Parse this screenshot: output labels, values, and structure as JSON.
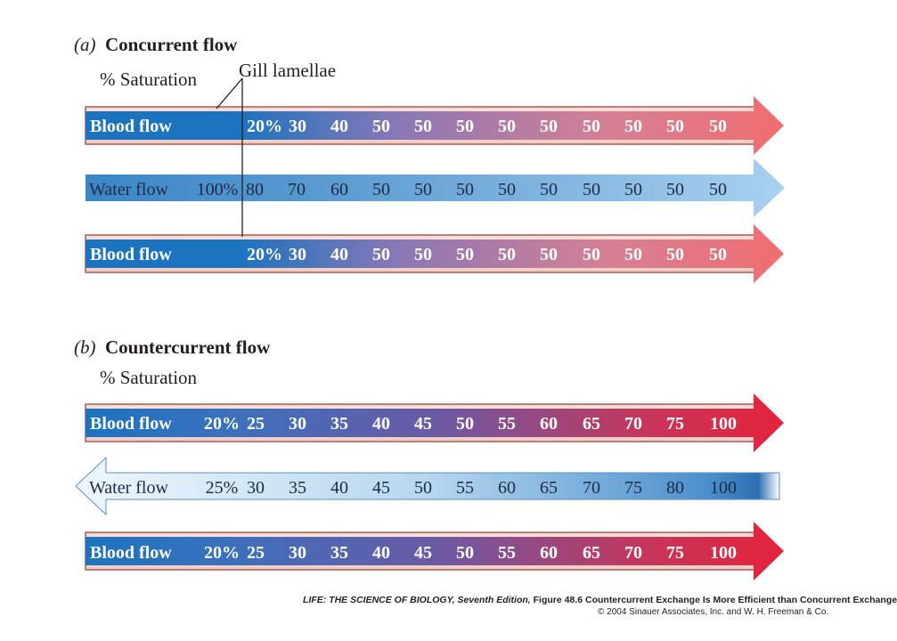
{
  "panel_a": {
    "letter": "(a)",
    "title": "Concurrent flow",
    "saturation_label": "% Saturation",
    "gill_label": "Gill lamellae",
    "blood_top": {
      "label": "Blood flow",
      "values": [
        "20%",
        "30",
        "40",
        "50",
        "50",
        "50",
        "50",
        "50",
        "50",
        "50",
        "50",
        "50"
      ]
    },
    "water": {
      "label": "Water flow",
      "values": [
        "100%",
        "80",
        "70",
        "60",
        "50",
        "50",
        "50",
        "50",
        "50",
        "50",
        "50",
        "50",
        "50"
      ]
    },
    "blood_bottom": {
      "label": "Blood flow",
      "values": [
        "20%",
        "30",
        "40",
        "50",
        "50",
        "50",
        "50",
        "50",
        "50",
        "50",
        "50",
        "50"
      ]
    }
  },
  "panel_b": {
    "letter": "(b)",
    "title": "Countercurrent flow",
    "saturation_label": "% Saturation",
    "blood_top": {
      "label": "Blood flow",
      "values": [
        "20%",
        "25",
        "30",
        "35",
        "40",
        "45",
        "50",
        "55",
        "60",
        "65",
        "70",
        "75",
        "100"
      ]
    },
    "water": {
      "label": "Water flow",
      "values": [
        "25%",
        "30",
        "35",
        "40",
        "45",
        "50",
        "55",
        "60",
        "65",
        "70",
        "75",
        "80",
        "100"
      ]
    },
    "blood_bottom": {
      "label": "Blood flow",
      "values": [
        "20%",
        "25",
        "30",
        "35",
        "40",
        "45",
        "50",
        "55",
        "60",
        "65",
        "70",
        "75",
        "100"
      ]
    }
  },
  "credit": {
    "line1_italic": "LIFE: THE SCIENCE OF BIOLOGY, Seventh Edition,",
    "line1_rest": " Figure 48.6 Countercurrent Exchange Is More Efficient than Concurrent Exchange",
    "line2": "© 2004 Sinauer Associates, Inc. and W. H. Freeman & Co."
  },
  "colors": {
    "blood_start": "#1c73bf",
    "blood_mid": "#7a6bb0",
    "blood_end_concurrent": "#ef6f73",
    "blood_end_counter": "#e3253a",
    "water_dark": "#3b86c6",
    "water_light": "#e2eff9",
    "vessel_edge": "#a85a55",
    "vessel_fill": "#f3cfc6"
  }
}
